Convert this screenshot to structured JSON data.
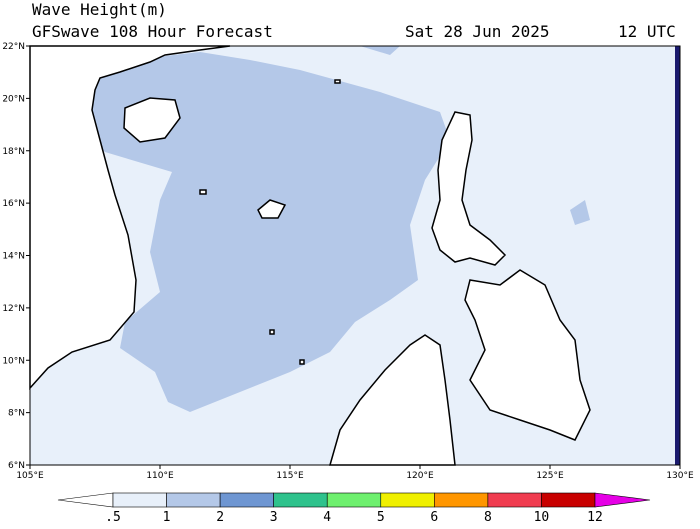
{
  "header": {
    "title": "Wave Height(m)",
    "subtitle": "GFSwave 108 Hour Forecast",
    "date": "Sat 28 Jun 2025",
    "time": "12 UTC"
  },
  "map": {
    "lat_labels": [
      "22°N",
      "20°N",
      "18°N",
      "16°N",
      "14°N",
      "12°N",
      "10°N",
      "8°N",
      "6°N"
    ],
    "lon_labels": [
      "105°E",
      "110°E",
      "115°E",
      "120°E",
      "125°E",
      "130°E"
    ]
  },
  "colorbar": {
    "labels": [
      ".5",
      "1",
      "2",
      "3",
      "4",
      "5",
      "6",
      "8",
      "10",
      "12"
    ],
    "colors": [
      "#ffffff",
      "#e8f0fa",
      "#b4c8e8",
      "#6e96d2",
      "#2ec28c",
      "#6ef06e",
      "#f0f000",
      "#ff9600",
      "#f03c50",
      "#c80000",
      "#e600e6"
    ]
  }
}
